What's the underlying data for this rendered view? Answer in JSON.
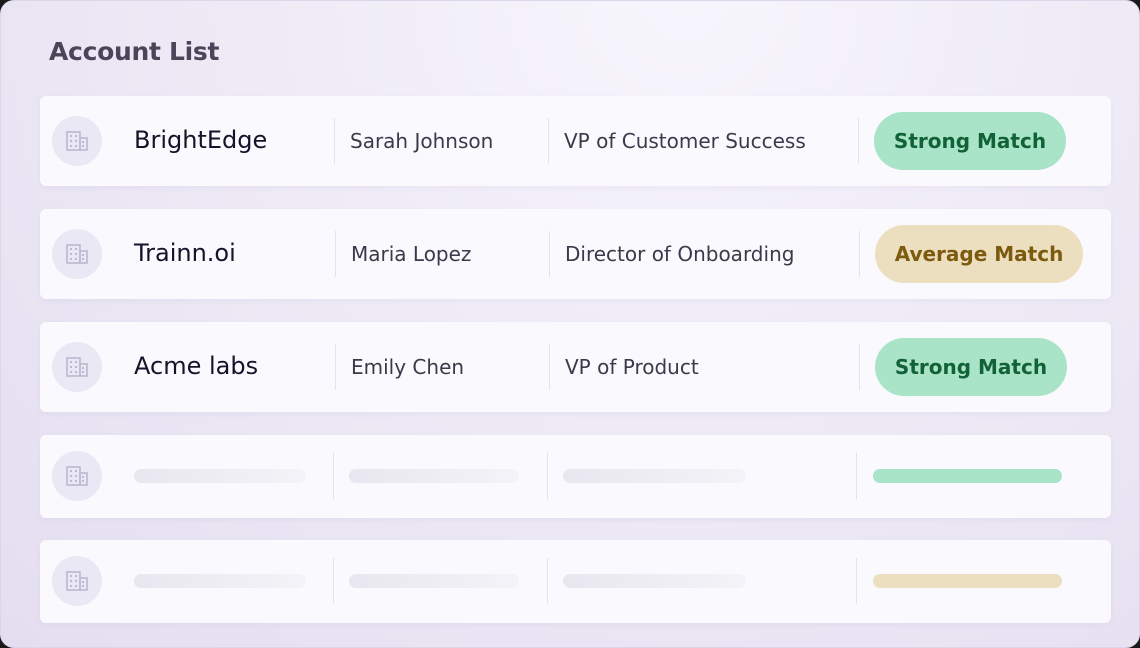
{
  "title": "Account List",
  "accounts": [
    {
      "company": "BrightEdge",
      "contact": "Sarah Johnson",
      "role": "VP of Customer Success",
      "match": "Strong Match",
      "level": "strong"
    },
    {
      "company": "Trainn.oi",
      "contact": "Maria Lopez",
      "role": "Director of Onboarding",
      "match": "Average Match",
      "level": "average"
    },
    {
      "company": "Acme labs",
      "contact": "Emily Chen",
      "role": "VP of Product",
      "match": "Strong Match",
      "level": "strong"
    }
  ],
  "placeholders": [
    {
      "level": "strong"
    },
    {
      "level": "average"
    }
  ],
  "colors": {
    "strong_bg": "#a9e3c8",
    "strong_text": "#126238",
    "average_bg": "#ecdfc0",
    "average_text": "#7c5a0e"
  },
  "icons": {
    "company": "building-icon"
  }
}
